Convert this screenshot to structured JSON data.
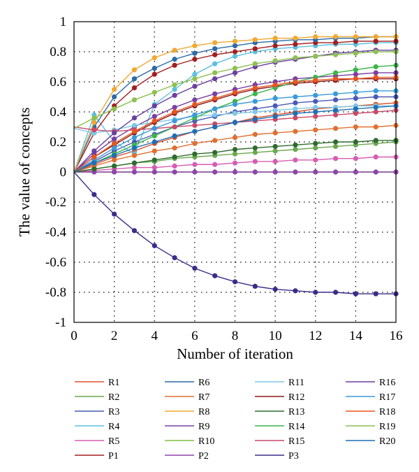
{
  "chart_data": {
    "type": "line",
    "title": "",
    "xlabel": "Number of iteration",
    "ylabel": "The value of concepts",
    "xlim": [
      0,
      16
    ],
    "ylim": [
      -1,
      1
    ],
    "xticks": [
      0,
      2,
      4,
      6,
      8,
      10,
      12,
      14,
      16
    ],
    "yticks": [
      1,
      0.8,
      0.6,
      0.4,
      0.2,
      0,
      -0.2,
      -0.4,
      -0.6,
      -0.8,
      -1
    ],
    "xtick_labels": [
      "0",
      "2",
      "4",
      "6",
      "8",
      "10",
      "12",
      "14",
      "16"
    ],
    "ytick_labels": [
      "1",
      "0.8",
      "0.6",
      "0.4",
      "0.2",
      "0",
      "-0.2",
      "-0.4",
      "-0.6",
      "-0.8",
      "-1"
    ],
    "grid": true,
    "legend_position": "bottom",
    "x": [
      0,
      1,
      2,
      3,
      4,
      5,
      6,
      7,
      8,
      9,
      10,
      11,
      12,
      13,
      14,
      15,
      16
    ],
    "series": [
      {
        "name": "R1",
        "color": "#d9532b",
        "values": [
          0,
          0.05,
          0.1,
          0.14,
          0.19,
          0.23,
          0.27,
          0.3,
          0.33,
          0.36,
          0.38,
          0.4,
          0.42,
          0.43,
          0.44,
          0.45,
          0.46
        ]
      },
      {
        "name": "R2",
        "color": "#6aa84f",
        "values": [
          0,
          0.02,
          0.04,
          0.06,
          0.07,
          0.09,
          0.1,
          0.11,
          0.12,
          0.13,
          0.14,
          0.15,
          0.16,
          0.17,
          0.18,
          0.19,
          0.2
        ]
      },
      {
        "name": "R3",
        "color": "#4a5ab5",
        "values": [
          0,
          0.07,
          0.14,
          0.2,
          0.25,
          0.3,
          0.34,
          0.37,
          0.4,
          0.42,
          0.44,
          0.46,
          0.47,
          0.48,
          0.49,
          0.5,
          0.5
        ]
      },
      {
        "name": "R4",
        "color": "#5bc0e0",
        "values": [
          0,
          0.38,
          0.2,
          0.12,
          0.45,
          0.55,
          0.65,
          0.72,
          0.77,
          0.8,
          0.82,
          0.83,
          0.84,
          0.85,
          0.85,
          0.86,
          0.86
        ]
      },
      {
        "name": "R5",
        "color": "#d65db1",
        "values": [
          0,
          0.01,
          0.02,
          0.03,
          0.03,
          0.04,
          0.05,
          0.05,
          0.06,
          0.07,
          0.07,
          0.08,
          0.08,
          0.09,
          0.09,
          0.1,
          0.1
        ]
      },
      {
        "name": "P1",
        "color": "#a31f1f",
        "values": [
          0,
          0.26,
          0.44,
          0.56,
          0.65,
          0.71,
          0.75,
          0.78,
          0.8,
          0.82,
          0.84,
          0.85,
          0.86,
          0.86,
          0.87,
          0.87,
          0.87
        ]
      },
      {
        "name": "R6",
        "color": "#2c6aa8",
        "values": [
          0,
          0.3,
          0.5,
          0.62,
          0.69,
          0.75,
          0.79,
          0.82,
          0.84,
          0.86,
          0.87,
          0.88,
          0.88,
          0.89,
          0.89,
          0.9,
          0.9
        ]
      },
      {
        "name": "R7",
        "color": "#e07030",
        "values": [
          0,
          0.04,
          0.08,
          0.11,
          0.14,
          0.16,
          0.19,
          0.21,
          0.23,
          0.25,
          0.26,
          0.27,
          0.28,
          0.29,
          0.3,
          0.3,
          0.31
        ]
      },
      {
        "name": "R8",
        "color": "#f0a830",
        "values": [
          0,
          0.33,
          0.55,
          0.68,
          0.76,
          0.81,
          0.84,
          0.86,
          0.87,
          0.88,
          0.89,
          0.89,
          0.9,
          0.9,
          0.9,
          0.9,
          0.9
        ]
      },
      {
        "name": "R9",
        "color": "#7b3fa0",
        "values": [
          0,
          0.12,
          0.22,
          0.3,
          0.37,
          0.43,
          0.48,
          0.52,
          0.55,
          0.58,
          0.6,
          0.62,
          0.63,
          0.64,
          0.65,
          0.66,
          0.66
        ]
      },
      {
        "name": "R10",
        "color": "#7cc142",
        "values": [
          0,
          0,
          0,
          0,
          0,
          0,
          0,
          0,
          0,
          0,
          0,
          0,
          0,
          0,
          0,
          0,
          0
        ]
      },
      {
        "name": "P2",
        "color": "#8e44ad",
        "values": [
          0,
          0,
          0,
          0,
          0,
          0,
          0,
          0,
          0,
          0,
          0,
          0,
          0,
          0,
          0,
          0,
          0
        ]
      },
      {
        "name": "R11",
        "color": "#7fc8e8",
        "values": [
          0.29,
          0.26,
          0.28,
          0.31,
          0.33,
          0.35,
          0.37,
          0.38,
          0.39,
          0.4,
          0.41,
          0.42,
          0.43,
          0.43,
          0.44,
          0.44,
          0.44
        ]
      },
      {
        "name": "R12",
        "color": "#8b1a1a",
        "values": [
          0,
          0.1,
          0.18,
          0.26,
          0.33,
          0.39,
          0.44,
          0.48,
          0.52,
          0.55,
          0.57,
          0.59,
          0.6,
          0.61,
          0.62,
          0.62,
          0.62
        ]
      },
      {
        "name": "R13",
        "color": "#2e6b2e",
        "values": [
          0,
          0.02,
          0.04,
          0.06,
          0.08,
          0.1,
          0.12,
          0.13,
          0.15,
          0.16,
          0.17,
          0.18,
          0.19,
          0.2,
          0.2,
          0.21,
          0.21
        ]
      },
      {
        "name": "R14",
        "color": "#3cb54a",
        "values": [
          0,
          0.06,
          0.12,
          0.18,
          0.24,
          0.3,
          0.36,
          0.42,
          0.47,
          0.52,
          0.56,
          0.6,
          0.63,
          0.66,
          0.68,
          0.7,
          0.71
        ]
      },
      {
        "name": "R15",
        "color": "#c94a6a",
        "values": [
          0.3,
          0.28,
          0.27,
          0.28,
          0.29,
          0.3,
          0.31,
          0.32,
          0.33,
          0.34,
          0.35,
          0.36,
          0.37,
          0.38,
          0.39,
          0.4,
          0.41
        ]
      },
      {
        "name": "P3",
        "color": "#3a2d8a",
        "values": [
          0,
          -0.15,
          -0.28,
          -0.39,
          -0.49,
          -0.57,
          -0.64,
          -0.69,
          -0.73,
          -0.76,
          -0.78,
          -0.79,
          -0.8,
          -0.8,
          -0.81,
          -0.81,
          -0.81
        ]
      },
      {
        "name": "R16",
        "color": "#6b3fa0",
        "values": [
          0,
          0.14,
          0.26,
          0.36,
          0.44,
          0.51,
          0.57,
          0.62,
          0.66,
          0.7,
          0.73,
          0.75,
          0.77,
          0.79,
          0.8,
          0.81,
          0.81
        ]
      },
      {
        "name": "R17",
        "color": "#3a9ad9",
        "values": [
          0,
          0.08,
          0.16,
          0.23,
          0.29,
          0.34,
          0.38,
          0.42,
          0.45,
          0.47,
          0.49,
          0.5,
          0.51,
          0.52,
          0.53,
          0.54,
          0.54
        ]
      },
      {
        "name": "R18",
        "color": "#e8561e",
        "values": [
          0,
          0.1,
          0.19,
          0.27,
          0.34,
          0.4,
          0.45,
          0.49,
          0.53,
          0.56,
          0.58,
          0.6,
          0.61,
          0.62,
          0.62,
          0.63,
          0.63
        ]
      },
      {
        "name": "R19",
        "color": "#8cc152",
        "values": [
          0.29,
          0.36,
          0.42,
          0.48,
          0.53,
          0.58,
          0.62,
          0.66,
          0.69,
          0.72,
          0.74,
          0.76,
          0.77,
          0.78,
          0.79,
          0.8,
          0.8
        ]
      },
      {
        "name": "R20",
        "color": "#1f6fb5",
        "values": [
          0,
          0.06,
          0.11,
          0.16,
          0.2,
          0.24,
          0.27,
          0.3,
          0.33,
          0.35,
          0.37,
          0.39,
          0.4,
          0.41,
          0.42,
          0.43,
          0.44
        ]
      }
    ],
    "legend_columns": [
      [
        "R1",
        "R2",
        "R3",
        "R4",
        "R5",
        "P1"
      ],
      [
        "R6",
        "R7",
        "R8",
        "R9",
        "R10",
        "P2"
      ],
      [
        "R11",
        "R12",
        "R13",
        "R14",
        "R15",
        "P3"
      ],
      [
        "R16",
        "R17",
        "R18",
        "R19",
        "R20"
      ]
    ]
  }
}
